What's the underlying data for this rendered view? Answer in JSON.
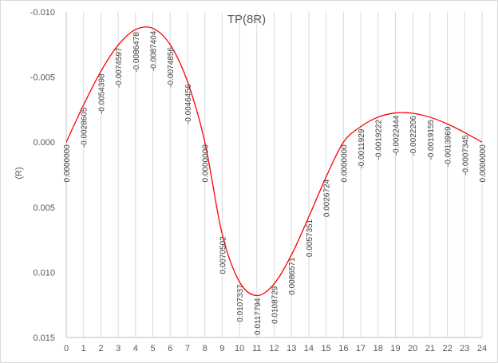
{
  "chart_data": {
    "type": "line",
    "title": "TP(8R)",
    "ylabel": "(R)",
    "xlabel": "",
    "y_axis_reversed": true,
    "ylim": [
      -0.01,
      0.015
    ],
    "y_ticks": [
      "-0.010",
      "-0.005",
      "0.000",
      "0.005",
      "0.010",
      "0.015"
    ],
    "y_tick_values": [
      -0.01,
      -0.005,
      0.0,
      0.005,
      0.01,
      0.015
    ],
    "xlim": [
      0,
      24
    ],
    "x_ticks": [
      "0",
      "1",
      "2",
      "3",
      "4",
      "5",
      "6",
      "7",
      "8",
      "9",
      "10",
      "11",
      "12",
      "13",
      "14",
      "15",
      "16",
      "17",
      "18",
      "19",
      "20",
      "21",
      "22",
      "23",
      "24"
    ],
    "grid": "vertical",
    "x": [
      0,
      1,
      2,
      3,
      4,
      5,
      6,
      7,
      8,
      9,
      10,
      11,
      12,
      13,
      14,
      15,
      16,
      17,
      18,
      19,
      20,
      21,
      22,
      23,
      24
    ],
    "series": [
      {
        "values": [
          0.0,
          -0.0028605,
          -0.0054398,
          -0.0074597,
          -0.0086478,
          -0.0087404,
          -0.0074856,
          -0.0046456,
          0.0,
          0.0070502,
          0.0107337,
          0.0117794,
          0.0108729,
          0.0086571,
          0.0057351,
          0.0026724,
          0.0,
          -0.0011929,
          -0.0019222,
          -0.0022444,
          -0.0022206,
          -0.0019155,
          -0.0013969,
          -0.0007345,
          0.0
        ],
        "color": "#ff0000"
      }
    ],
    "data_labels": [
      "0.0000000",
      "-0.0028605",
      "-0.0054398",
      "-0.0074597",
      "-0.0086478",
      "-0.0087404",
      "-0.0074856",
      "-0.0046456",
      "0.0000000",
      "0.0070502",
      "0.0107337",
      "0.0117794",
      "0.0108729",
      "0.0086571",
      "0.0057351",
      "0.0026724",
      "0.0000000",
      "-0.0011929",
      "-0.0019222",
      "-0.0022444",
      "-0.0022206",
      "-0.0019155",
      "-0.0013969",
      "-0.0007345",
      "0.0000000"
    ]
  }
}
